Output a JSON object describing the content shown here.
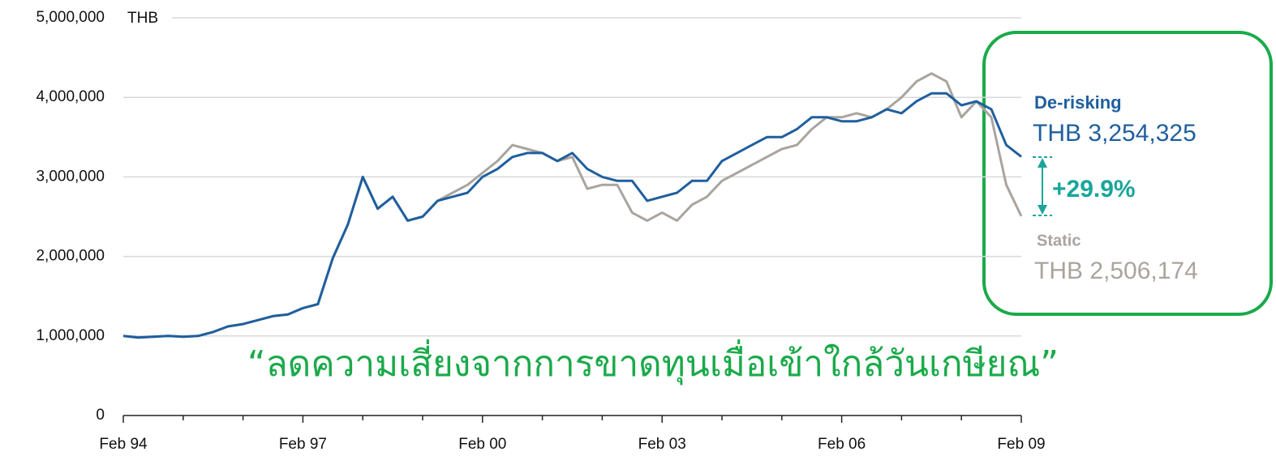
{
  "chart_data": {
    "type": "line",
    "unit_label": "THB",
    "x": [
      "Feb 94",
      "May 94",
      "Aug 94",
      "Nov 94",
      "Feb 95",
      "May 95",
      "Aug 95",
      "Nov 95",
      "Feb 96",
      "May 96",
      "Aug 96",
      "Nov 96",
      "Feb 97",
      "May 97",
      "Aug 97",
      "Nov 97",
      "Feb 98",
      "May 98",
      "Aug 98",
      "Nov 98",
      "Feb 99",
      "May 99",
      "Aug 99",
      "Nov 99",
      "Feb 00",
      "May 00",
      "Aug 00",
      "Nov 00",
      "Feb 01",
      "May 01",
      "Aug 01",
      "Nov 01",
      "Feb 02",
      "May 02",
      "Aug 02",
      "Nov 02",
      "Feb 03",
      "May 03",
      "Aug 03",
      "Nov 03",
      "Feb 04",
      "May 04",
      "Aug 04",
      "Nov 04",
      "Feb 05",
      "May 05",
      "Aug 05",
      "Nov 05",
      "Feb 06",
      "May 06",
      "Aug 06",
      "Nov 06",
      "Feb 07",
      "May 07",
      "Aug 07",
      "Nov 07",
      "Feb 08",
      "May 08",
      "Aug 08",
      "Nov 08",
      "Feb 09"
    ],
    "xticks": [
      "Feb 94",
      null,
      null,
      "Feb 97",
      null,
      null,
      "Feb 00",
      null,
      null,
      "Feb 03",
      null,
      null,
      "Feb 06",
      null,
      null,
      "Feb 09"
    ],
    "series": [
      {
        "name": "Static",
        "color": "#aaa49e",
        "values": [
          1000000,
          980000,
          990000,
          1000000,
          990000,
          1000000,
          1050000,
          1120000,
          1150000,
          1200000,
          1250000,
          1270000,
          1350000,
          1400000,
          1980000,
          2400000,
          3000000,
          2600000,
          2750000,
          2450000,
          2500000,
          2700000,
          2800000,
          2900000,
          3050000,
          3200000,
          3400000,
          3350000,
          3300000,
          3200000,
          3250000,
          2850000,
          2900000,
          2900000,
          2550000,
          2450000,
          2550000,
          2450000,
          2650000,
          2750000,
          2950000,
          3050000,
          3150000,
          3250000,
          3350000,
          3400000,
          3600000,
          3750000,
          3750000,
          3800000,
          3750000,
          3850000,
          4000000,
          4200000,
          4300000,
          4200000,
          3750000,
          3950000,
          3750000,
          2900000,
          2506174
        ]
      },
      {
        "name": "De-risking",
        "color": "#1f5f9e",
        "values": [
          1000000,
          980000,
          990000,
          1000000,
          990000,
          1000000,
          1050000,
          1120000,
          1150000,
          1200000,
          1250000,
          1270000,
          1350000,
          1400000,
          1980000,
          2400000,
          3000000,
          2600000,
          2750000,
          2450000,
          2500000,
          2700000,
          2750000,
          2800000,
          3000000,
          3100000,
          3250000,
          3300000,
          3300000,
          3200000,
          3300000,
          3100000,
          3000000,
          2950000,
          2950000,
          2700000,
          2750000,
          2800000,
          2950000,
          2950000,
          3200000,
          3300000,
          3400000,
          3500000,
          3500000,
          3600000,
          3750000,
          3750000,
          3700000,
          3700000,
          3750000,
          3850000,
          3800000,
          3950000,
          4050000,
          4050000,
          3900000,
          3950000,
          3850000,
          3400000,
          3254325
        ]
      }
    ],
    "ylim": [
      0,
      5000000
    ],
    "yticks": [
      0,
      {
        "value": 1000000,
        "label": "1,000,000"
      },
      {
        "value": 2000000,
        "label": "2,000,000"
      },
      {
        "value": 3000000,
        "label": "3,000,000"
      },
      {
        "value": 4000000,
        "label": "4,000,000"
      },
      {
        "value": 5000000,
        "label": "5,000,000"
      }
    ],
    "grid": true,
    "annotations": {
      "derisk_label": "De-risking",
      "derisk_value": "THB 3,254,325",
      "difference": "+29.9%",
      "static_label": "Static",
      "static_value": "THB 2,506,174",
      "caption": "“ลดความเสี่ยงจากการขาดทุนเมื่อเข้าใกล้วันเกษียณ”"
    }
  }
}
